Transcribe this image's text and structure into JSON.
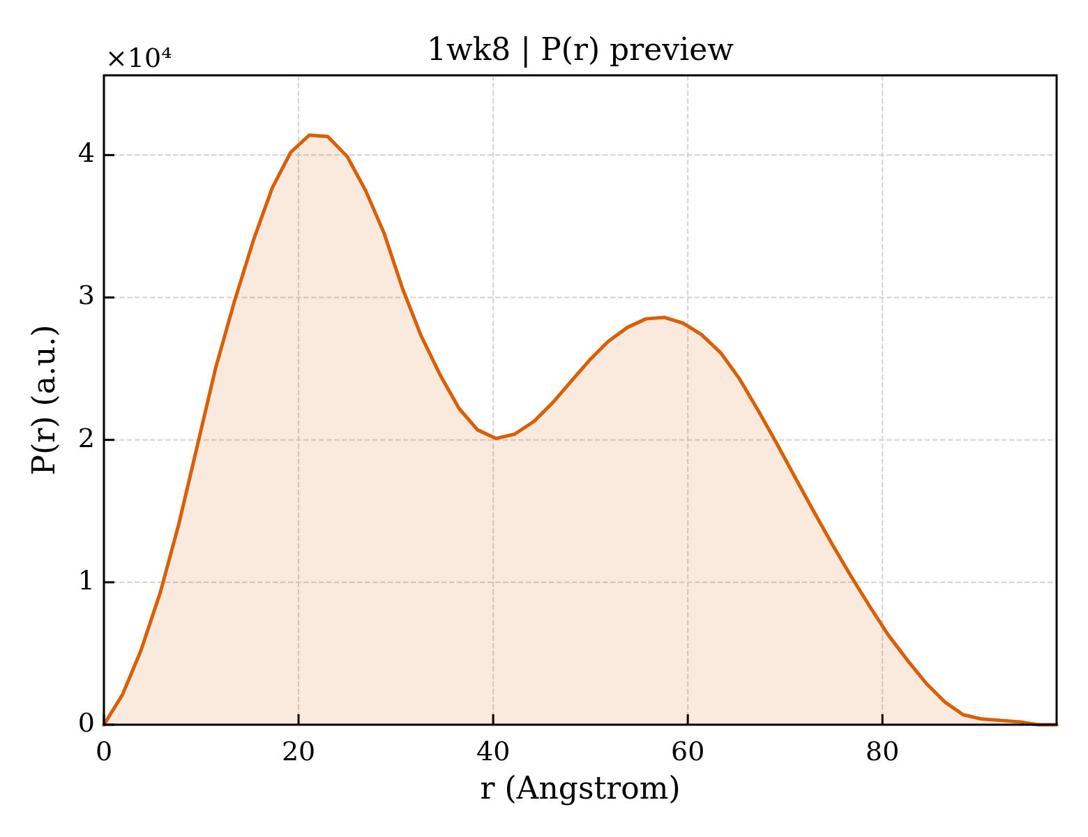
{
  "chart_data": {
    "type": "area",
    "title": "1wk8 | P(r) preview",
    "xlabel": "r (Angstrom)",
    "ylabel": "P(r) (a.u.)",
    "annotations": [
      "×10⁴"
    ],
    "x": [
      0,
      1.9,
      3.8,
      5.8,
      7.7,
      9.6,
      11.5,
      13.4,
      15.4,
      17.3,
      19.2,
      21.1,
      23.0,
      25.0,
      26.9,
      28.8,
      30.7,
      32.6,
      34.6,
      36.5,
      38.4,
      40.3,
      42.2,
      44.2,
      46.1,
      48.0,
      49.9,
      51.8,
      53.8,
      55.7,
      57.6,
      59.5,
      61.4,
      63.4,
      65.3,
      67.2,
      69.1,
      71.0,
      73.0,
      74.9,
      76.8,
      78.7,
      80.6,
      82.6,
      84.5,
      86.4,
      88.3,
      90.2,
      92.2,
      94.1,
      96.0,
      97.9
    ],
    "values": [
      0,
      0.21,
      0.52,
      0.93,
      1.41,
      1.96,
      2.51,
      2.97,
      3.41,
      3.77,
      4.02,
      4.14,
      4.13,
      3.99,
      3.75,
      3.45,
      3.06,
      2.73,
      2.45,
      2.22,
      2.07,
      2.01,
      2.04,
      2.13,
      2.26,
      2.41,
      2.56,
      2.69,
      2.79,
      2.85,
      2.86,
      2.82,
      2.74,
      2.61,
      2.43,
      2.21,
      1.98,
      1.74,
      1.49,
      1.26,
      1.04,
      0.83,
      0.63,
      0.45,
      0.29,
      0.16,
      0.07,
      0.04,
      0.03,
      0.02,
      0,
      0
    ],
    "color": "#d95f02",
    "xlim": [
      0,
      97.9
    ],
    "ylim": [
      0,
      4.56
    ],
    "xticks": [
      0,
      20,
      40,
      60,
      80
    ],
    "yticks": [
      0,
      1,
      2,
      3,
      4
    ],
    "grid": true
  }
}
